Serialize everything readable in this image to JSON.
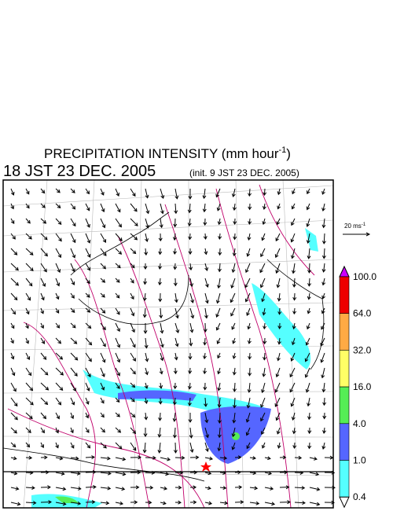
{
  "header": {
    "title": "PRECIPITATION INTENSITY (mm hour",
    "title_exponent": "-1",
    "title_close": ")",
    "valid_time": "18 JST 23 DEC. 2005",
    "init_time": "(init. 9 JST 23 DEC. 2005)"
  },
  "vector_legend": {
    "label": "20 ms",
    "exponent": "-1"
  },
  "colorbar": {
    "ticks": [
      {
        "value": 100,
        "label": "100.0"
      },
      {
        "value": 64,
        "label": "64.0"
      },
      {
        "value": 32,
        "label": "32.0"
      },
      {
        "value": 16,
        "label": "16.0"
      },
      {
        "value": 4,
        "label": "4.0"
      },
      {
        "value": 1,
        "label": "1.0"
      },
      {
        "value": 0.4,
        "label": "0.4"
      }
    ],
    "colors": [
      "#cc00ff",
      "#ee0000",
      "#ffaa44",
      "#ffff66",
      "#55ee55",
      "#5566ff",
      "#55ffff",
      "#ffffff"
    ]
  }
}
